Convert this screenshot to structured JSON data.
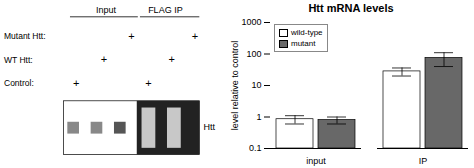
{
  "chart_data": {
    "type": "bar",
    "title": "Htt mRNA levels",
    "ylabel": "level relative to control",
    "categories": [
      "input",
      "IP"
    ],
    "series": [
      {
        "name": "wild-type",
        "color": "#ffffff",
        "values": [
          0.85,
          28.0
        ],
        "errors": [
          0.25,
          8.0
        ]
      },
      {
        "name": "mutant",
        "color": "#686868",
        "values": [
          0.8,
          75.0
        ],
        "errors": [
          0.2,
          35.0
        ]
      }
    ],
    "ylim": [
      0.1,
      1000
    ],
    "yticks": [
      0.1,
      1,
      10,
      100,
      1000
    ],
    "log": "y",
    "grid": false,
    "legend": "upper left",
    "annotations": [
      "Input",
      "FLAG IP",
      "Mutant Htt:",
      "WT Htt:",
      "Control:",
      "+",
      "Htt"
    ]
  }
}
